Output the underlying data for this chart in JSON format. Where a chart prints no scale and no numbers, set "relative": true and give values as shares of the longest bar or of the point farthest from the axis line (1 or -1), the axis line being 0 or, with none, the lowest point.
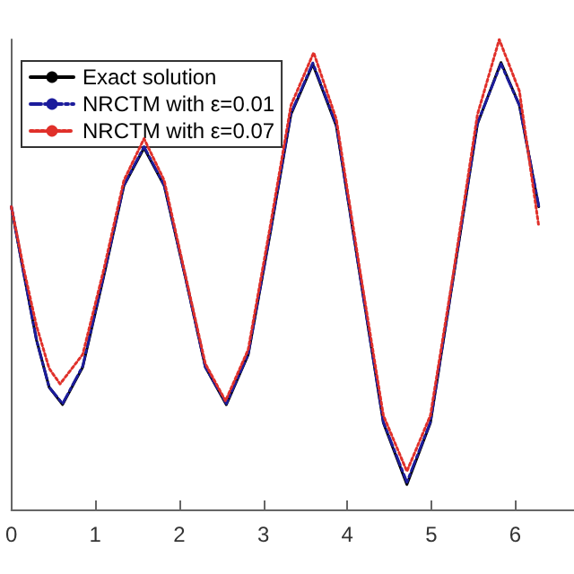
{
  "chart_data": {
    "type": "line",
    "relative": true,
    "xlim": [
      0,
      6.7
    ],
    "xticks": [
      0,
      1,
      2,
      3,
      4,
      5,
      6
    ],
    "legend": "top left",
    "marker": "none",
    "series": [
      {
        "name": "Exact solution",
        "color": "#000000",
        "line_style": "solid",
        "x": [
          0,
          0.15,
          0.3,
          0.45,
          0.61,
          0.85,
          1.1,
          1.34,
          1.58,
          1.82,
          2.07,
          2.31,
          2.56,
          2.82,
          3.08,
          3.33,
          3.59,
          3.87,
          4.15,
          4.43,
          4.71,
          4.99,
          5.27,
          5.55,
          5.83,
          6.05,
          6.28
        ],
        "values": [
          0.644,
          0.5,
          0.36,
          0.26,
          0.223,
          0.303,
          0.496,
          0.689,
          0.769,
          0.689,
          0.496,
          0.303,
          0.223,
          0.329,
          0.585,
          0.841,
          0.947,
          0.816,
          0.5,
          0.184,
          0.053,
          0.184,
          0.502,
          0.82,
          0.951,
          0.86,
          0.644
        ]
      },
      {
        "name": "NRCTM with ε=0.01",
        "color": "#1c1c9c",
        "line_style": "dashed",
        "x": [
          0,
          0.15,
          0.3,
          0.45,
          0.61,
          0.85,
          1.1,
          1.34,
          1.58,
          1.82,
          2.07,
          2.31,
          2.56,
          2.82,
          3.08,
          3.33,
          3.59,
          3.87,
          4.15,
          4.43,
          4.71,
          4.99,
          5.27,
          5.55,
          5.83,
          6.05,
          6.28
        ],
        "values": [
          0.644,
          0.5,
          0.36,
          0.26,
          0.225,
          0.305,
          0.498,
          0.69,
          0.772,
          0.69,
          0.496,
          0.303,
          0.225,
          0.33,
          0.587,
          0.843,
          0.95,
          0.818,
          0.5,
          0.186,
          0.058,
          0.186,
          0.503,
          0.822,
          0.948,
          0.86,
          0.646
        ]
      },
      {
        "name": "NRCTM with ε=0.07",
        "color": "#e0302a",
        "line_style": "dotted",
        "x": [
          0,
          0.15,
          0.3,
          0.45,
          0.58,
          0.85,
          1.1,
          1.34,
          1.58,
          1.82,
          2.07,
          2.31,
          2.55,
          2.82,
          3.08,
          3.33,
          3.6,
          3.87,
          4.15,
          4.43,
          4.71,
          4.99,
          5.27,
          5.55,
          5.81,
          6.05,
          6.28
        ],
        "values": [
          0.644,
          0.51,
          0.39,
          0.3,
          0.267,
          0.33,
          0.51,
          0.7,
          0.789,
          0.7,
          0.5,
          0.31,
          0.231,
          0.34,
          0.6,
          0.86,
          0.972,
          0.83,
          0.51,
          0.2,
          0.081,
          0.2,
          0.51,
          0.84,
          1.0,
          0.89,
          0.603
        ]
      }
    ]
  }
}
